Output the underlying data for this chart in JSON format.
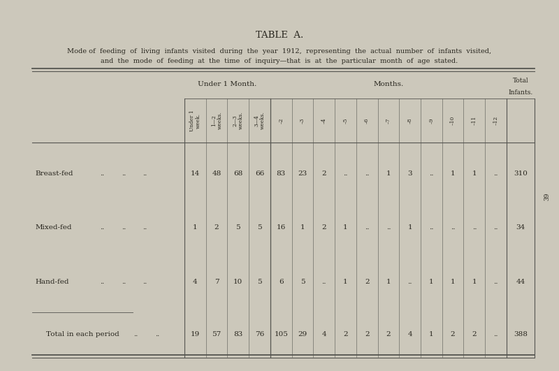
{
  "title": "TABLE  A.",
  "subtitle_line1": "Mode of  feeding  of  living  infants  visited  during  the  year  1912,  representing  the  actual  number  of  infants  visited,",
  "subtitle_line2": "and  the  mode  of  feeding  at  the  time  of  inquiry—that  is  at  the  particular  month  of  age  stated.",
  "bg_color": "#ccc8bb",
  "text_color": "#2a2820",
  "header_group1": "Under 1 Month.",
  "header_group2": "Months.",
  "header_total_line1": "Total",
  "header_total_line2": "Infants.",
  "col_headers": [
    "Under 1\nweek.",
    "1—2\nweeks.",
    "2—3\nweeks.",
    "3—4\nweeks.",
    "–2",
    "–3",
    "–4",
    "–5",
    "–6",
    "–7",
    "–8",
    "–9",
    "–10",
    "–11",
    "–12"
  ],
  "data": {
    "Breast-fed": [
      "14",
      "48",
      "68",
      "66",
      "83",
      "23",
      "2",
      "..",
      "..",
      "1",
      "3",
      "..",
      "1",
      "1",
      "..",
      "310"
    ],
    "Mixed-fed": [
      "1",
      "2",
      "5",
      "5",
      "16",
      "1",
      "2",
      "1",
      "..",
      "..",
      "1",
      "..",
      "..",
      "..",
      "..",
      "34"
    ],
    "Hand-fed": [
      "4",
      "7",
      "10",
      "5",
      "6",
      "5",
      "..",
      "1",
      "2",
      "1",
      "..",
      "1",
      "1",
      "1",
      "..",
      "44"
    ],
    "Total in each period": [
      "19",
      "57",
      "83",
      "76",
      "105",
      "29",
      "4",
      "2",
      "2",
      "2",
      "4",
      "1",
      "2",
      "2",
      "..",
      "388"
    ]
  },
  "side_number": "39"
}
